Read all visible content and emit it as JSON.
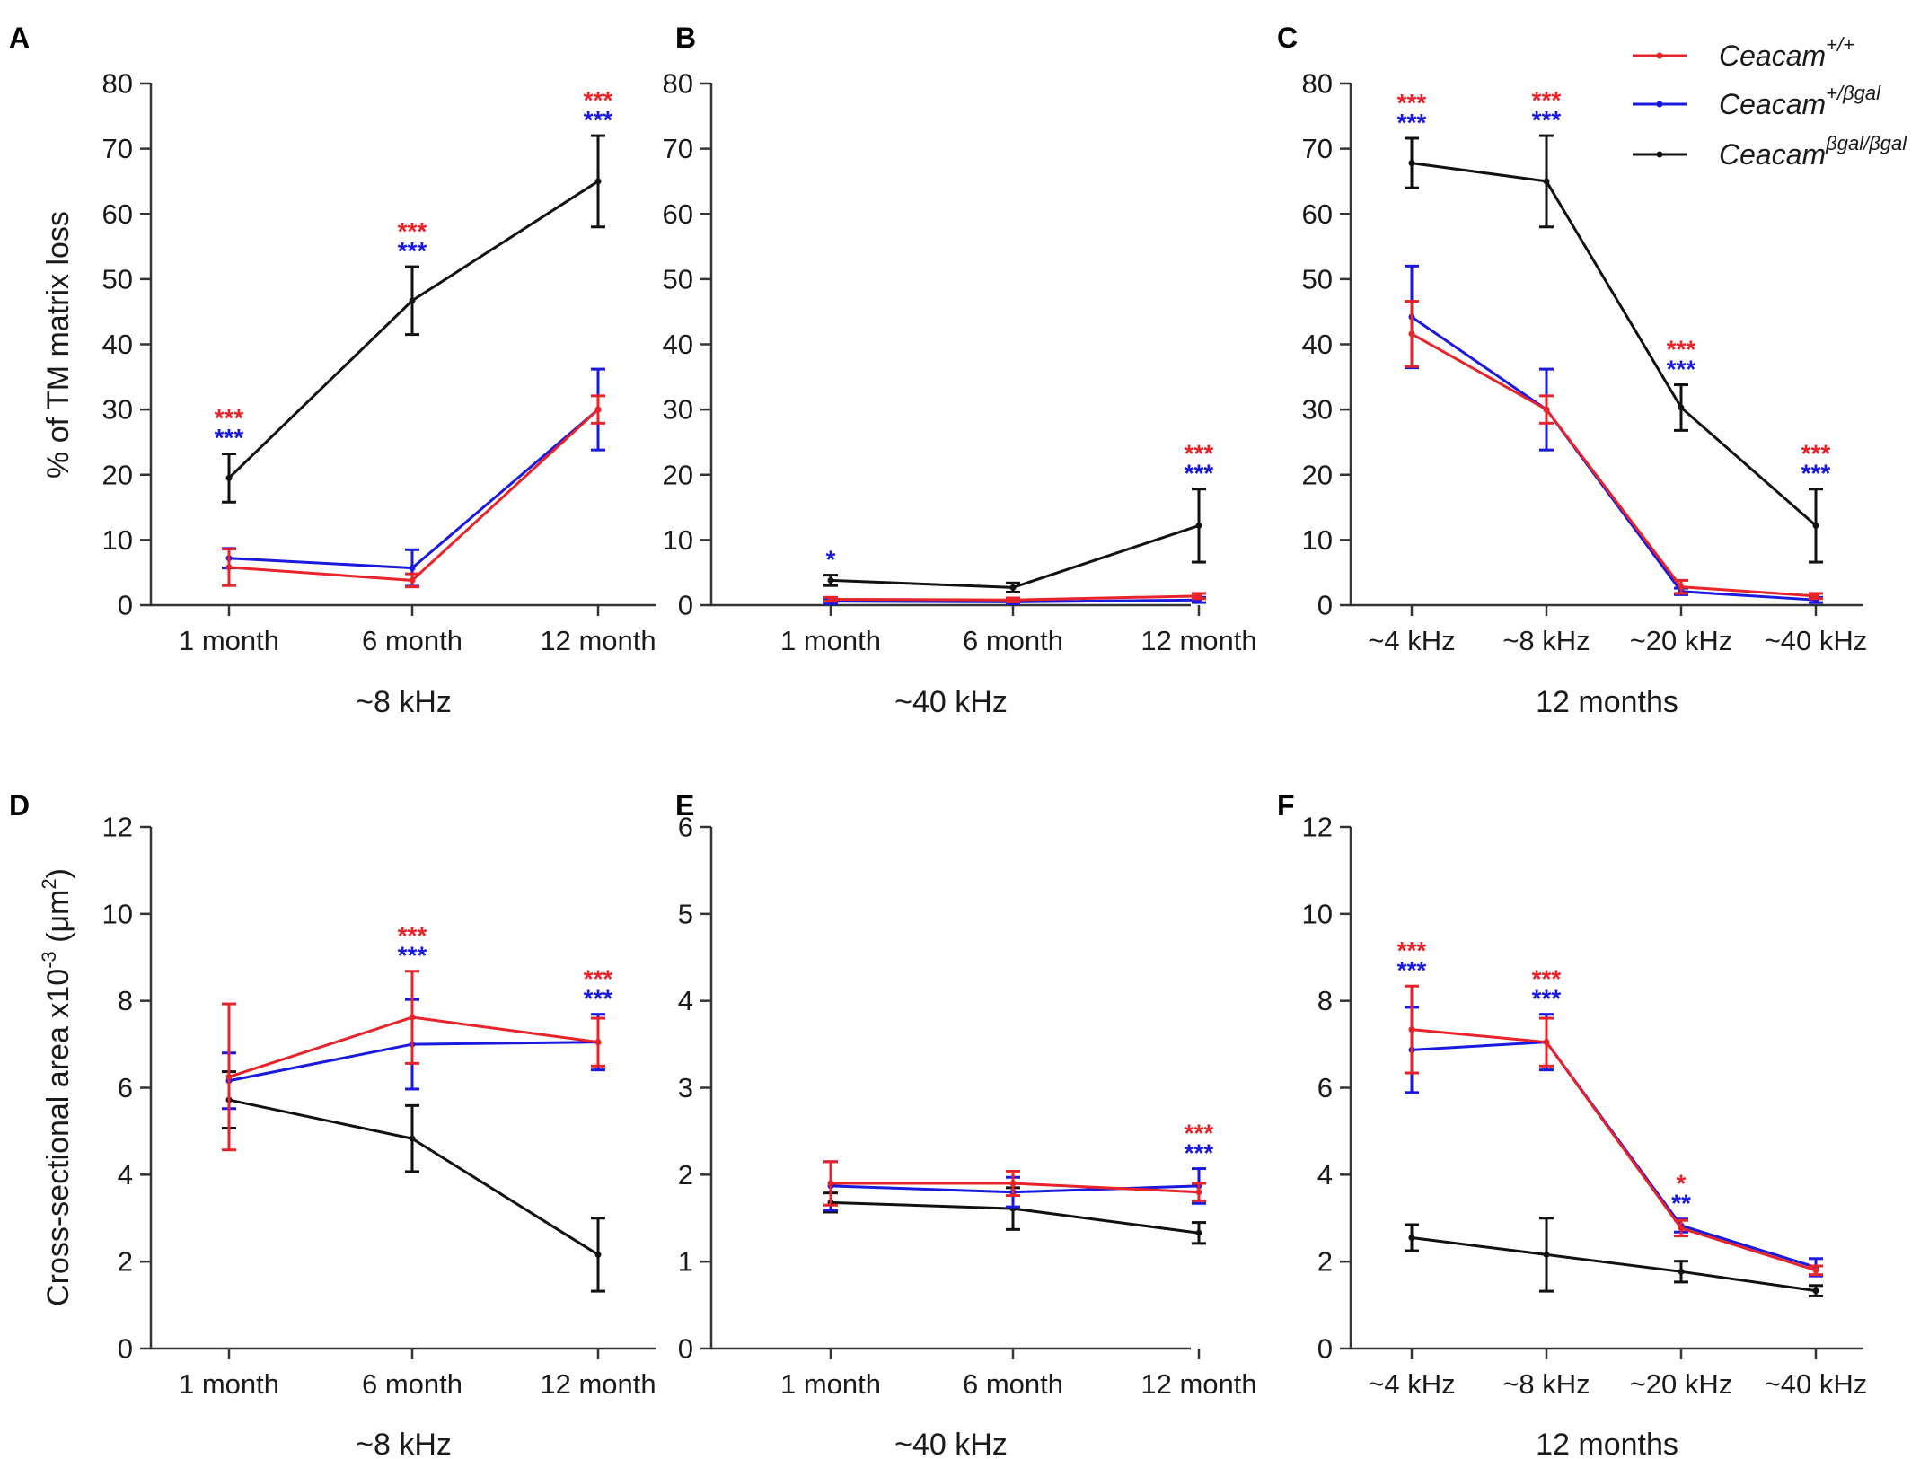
{
  "colors": {
    "wildtype": "#e8232a",
    "heterozygous": "#1a1adf",
    "homozygous": "#111111",
    "axis": "#333333"
  },
  "legend": {
    "entries": [
      {
        "key": "wildtype",
        "base": "Ceacam",
        "sup": "+/+"
      },
      {
        "key": "heterozygous",
        "base": "Ceacam",
        "sup": "+/βgal"
      },
      {
        "key": "homozygous",
        "base": "Ceacam",
        "sup": "βgal/βgal"
      }
    ]
  },
  "y_axis_labels": {
    "top": "% of TM matrix loss",
    "bottom_main": "Cross-sectional area x10",
    "bottom_exp": "-3",
    "bottom_unit": " (μm",
    "bottom_unit_exp": "2",
    "bottom_close": ")"
  },
  "chart_data": [
    {
      "panel": "A",
      "type": "line",
      "group_label": "~8 kHz",
      "categories": [
        "1 month",
        "6 month",
        "12 month"
      ],
      "ylim": [
        0,
        80
      ],
      "yticks": [
        0,
        10,
        20,
        30,
        40,
        50,
        60,
        70,
        80
      ],
      "series": [
        {
          "key": "homozygous",
          "values": [
            19.5,
            46.7,
            65.0
          ],
          "errors": [
            3.7,
            5.2,
            7.0
          ]
        },
        {
          "key": "heterozygous",
          "values": [
            7.2,
            5.7,
            30.0
          ],
          "errors": [
            1.5,
            2.8,
            6.2
          ]
        },
        {
          "key": "wildtype",
          "values": [
            5.8,
            3.8,
            30.0
          ],
          "errors": [
            2.8,
            1.0,
            2.1
          ]
        }
      ],
      "significance": [
        {
          "category": 0,
          "red": "***",
          "blue": "***",
          "above": 23.3
        },
        {
          "category": 1,
          "red": "***",
          "blue": "***",
          "above": 51.9
        },
        {
          "category": 2,
          "red": "***",
          "blue": "***",
          "above": 72.0
        }
      ]
    },
    {
      "panel": "B",
      "type": "line",
      "group_label": "~40 kHz",
      "categories": [
        "1 month",
        "6 month",
        "12 month"
      ],
      "ylim": [
        0,
        80
      ],
      "yticks": [
        0,
        10,
        20,
        30,
        40,
        50,
        60,
        70,
        80
      ],
      "series": [
        {
          "key": "homozygous",
          "values": [
            3.8,
            2.7,
            12.2
          ],
          "errors": [
            0.8,
            0.7,
            5.6
          ]
        },
        {
          "key": "heterozygous",
          "values": [
            0.6,
            0.5,
            0.8
          ],
          "errors": [
            0.4,
            0.3,
            0.4
          ]
        },
        {
          "key": "wildtype",
          "values": [
            0.9,
            0.8,
            1.4
          ],
          "errors": [
            0.3,
            0.3,
            0.4
          ]
        }
      ],
      "significance": [
        {
          "category": 0,
          "red": "",
          "blue": "*",
          "above": 4.6
        },
        {
          "category": 2,
          "red": "***",
          "blue": "***",
          "above": 17.8
        }
      ]
    },
    {
      "panel": "C",
      "type": "line",
      "group_label": "12 months",
      "categories": [
        "~4 kHz",
        "~8 kHz",
        "~20 kHz",
        "~40 kHz"
      ],
      "ylim": [
        0,
        80
      ],
      "yticks": [
        0,
        10,
        20,
        30,
        40,
        50,
        60,
        70,
        80
      ],
      "series": [
        {
          "key": "homozygous",
          "values": [
            67.8,
            65.0,
            30.3,
            12.2
          ],
          "errors": [
            3.8,
            7.0,
            3.5,
            5.6
          ]
        },
        {
          "key": "heterozygous",
          "values": [
            44.2,
            30.0,
            2.1,
            0.8
          ],
          "errors": [
            7.8,
            6.2,
            0.5,
            0.4
          ]
        },
        {
          "key": "wildtype",
          "values": [
            41.6,
            30.0,
            2.8,
            1.4
          ],
          "errors": [
            5.0,
            2.1,
            1.0,
            0.4
          ]
        }
      ],
      "significance": [
        {
          "category": 0,
          "red": "***",
          "blue": "***",
          "above": 71.6
        },
        {
          "category": 1,
          "red": "***",
          "blue": "***",
          "above": 72.0
        },
        {
          "category": 2,
          "red": "***",
          "blue": "***",
          "above": 33.8
        },
        {
          "category": 3,
          "red": "***",
          "blue": "***",
          "above": 17.8
        }
      ]
    },
    {
      "panel": "D",
      "type": "line",
      "group_label": "~8 kHz",
      "categories": [
        "1 month",
        "6 month",
        "12 month"
      ],
      "ylim": [
        0,
        12
      ],
      "yticks": [
        0,
        2,
        4,
        6,
        8,
        10,
        12
      ],
      "series": [
        {
          "key": "homozygous",
          "values": [
            5.72,
            4.83,
            2.16
          ],
          "errors": [
            0.65,
            0.76,
            0.84
          ]
        },
        {
          "key": "heterozygous",
          "values": [
            6.16,
            7.0,
            7.05
          ],
          "errors": [
            0.64,
            1.03,
            0.64
          ]
        },
        {
          "key": "wildtype",
          "values": [
            6.25,
            7.62,
            7.05
          ],
          "errors": [
            1.68,
            1.06,
            0.55
          ]
        }
      ],
      "significance": [
        {
          "category": 1,
          "red": "***",
          "blue": "***",
          "above": 8.68
        },
        {
          "category": 2,
          "red": "***",
          "blue": "***",
          "above": 7.69
        }
      ]
    },
    {
      "panel": "E",
      "type": "line",
      "group_label": "~40 kHz",
      "categories": [
        "1 month",
        "6 month",
        "12 month"
      ],
      "ylim": [
        0,
        6
      ],
      "yticks": [
        0,
        1,
        2,
        3,
        4,
        5,
        6
      ],
      "series": [
        {
          "key": "homozygous",
          "values": [
            1.68,
            1.61,
            1.33
          ],
          "errors": [
            0.11,
            0.24,
            0.12
          ]
        },
        {
          "key": "heterozygous",
          "values": [
            1.87,
            1.8,
            1.87
          ],
          "errors": [
            0.28,
            0.17,
            0.2
          ]
        },
        {
          "key": "wildtype",
          "values": [
            1.9,
            1.9,
            1.8
          ],
          "errors": [
            0.25,
            0.14,
            0.1
          ]
        }
      ],
      "significance": [
        {
          "category": 2,
          "red": "***",
          "blue": "***",
          "above": 2.07
        }
      ]
    },
    {
      "panel": "F",
      "type": "line",
      "group_label": "12 months",
      "categories": [
        "~4 kHz",
        "~8 kHz",
        "~20 kHz",
        "~40 kHz"
      ],
      "ylim": [
        0,
        12
      ],
      "yticks": [
        0,
        2,
        4,
        6,
        8,
        10,
        12
      ],
      "series": [
        {
          "key": "homozygous",
          "values": [
            2.55,
            2.16,
            1.77,
            1.33
          ],
          "errors": [
            0.3,
            0.84,
            0.24,
            0.12
          ]
        },
        {
          "key": "heterozygous",
          "values": [
            6.87,
            7.05,
            2.83,
            1.87
          ],
          "errors": [
            0.98,
            0.64,
            0.15,
            0.2
          ]
        },
        {
          "key": "wildtype",
          "values": [
            7.34,
            7.05,
            2.77,
            1.8
          ],
          "errors": [
            1.0,
            0.55,
            0.18,
            0.1
          ]
        }
      ],
      "significance": [
        {
          "category": 0,
          "red": "***",
          "blue": "***",
          "above": 8.34
        },
        {
          "category": 1,
          "red": "***",
          "blue": "***",
          "above": 7.69
        },
        {
          "category": 2,
          "red": "*",
          "blue": "**",
          "above": 2.98
        }
      ]
    }
  ]
}
